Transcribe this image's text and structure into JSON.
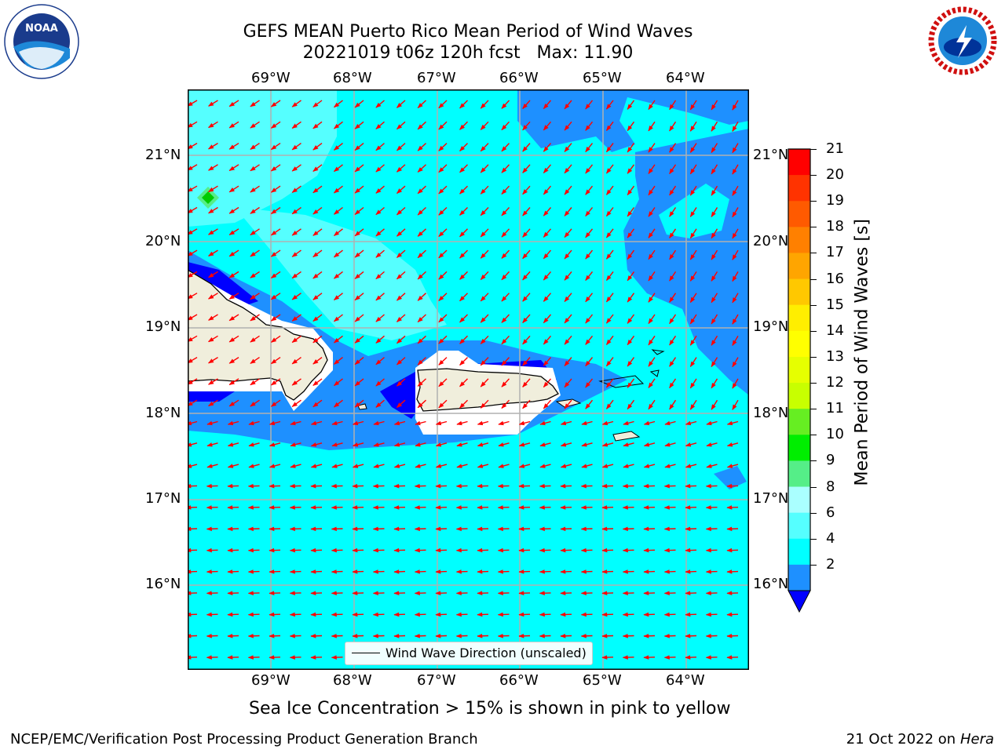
{
  "header": {
    "title_line1": "GEFS MEAN Puerto Rico Mean Period of Wind Waves",
    "title_line2": "20221019 t06z 120h fcst   Max: 11.90"
  },
  "logos": {
    "left": "NOAA",
    "right": "NATIONAL WEATHER SERVICE"
  },
  "map": {
    "lon_labels": [
      "69°W",
      "68°W",
      "67°W",
      "66°W",
      "65°W",
      "64°W"
    ],
    "lat_labels": [
      "21°N",
      "20°N",
      "19°N",
      "18°N",
      "17°N",
      "16°N"
    ],
    "legend_label": "Wind Wave Direction (unscaled)"
  },
  "colorbar": {
    "label": "Mean Period of Wind Waves [s]",
    "ticks": [
      "21",
      "20",
      "19",
      "18",
      "17",
      "16",
      "15",
      "14",
      "13",
      "12",
      "11",
      "10",
      "9",
      "8",
      "6",
      "4",
      "2"
    ],
    "colors": [
      "#ff0000",
      "#ff3300",
      "#ff5a00",
      "#ff8000",
      "#ffa500",
      "#ffc800",
      "#ffee00",
      "#ffff00",
      "#e6ff00",
      "#c8ff00",
      "#66ee22",
      "#00ee00",
      "#55ee88",
      "#aaffff",
      "#55ffff",
      "#00ffff",
      "#1e90ff",
      "#0000ff"
    ]
  },
  "caption": "Sea Ice Concentration > 15% is shown in pink to yellow",
  "footer": {
    "left": "NCEP/EMC/Verification Post Processing Product Generation Branch",
    "right_date": "21 Oct 2022 on ",
    "right_host": "Hera"
  }
}
